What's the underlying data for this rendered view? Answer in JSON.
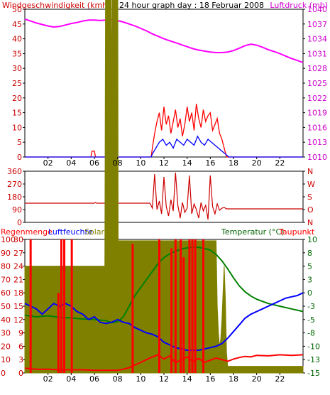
{
  "header": {
    "left_title": "Windgeschwindigkeit (kmh)",
    "center_title": "24 hour graph day : 18 Februar 2008",
    "right_title": "Luftdruck (mb)"
  },
  "panel3_labels": {
    "rain": "Regenmenge",
    "humidity": "Luftfeuchte",
    "solar": "Solar",
    "temperature": "Temperatur (°C)",
    "dewpoint": "Taupunkt"
  },
  "colors": {
    "wind_gust": "#ff0000",
    "wind_avg": "#0000ff",
    "pressure": "#ff00ff",
    "direction": "#cc0000",
    "solar": "#808000",
    "temperature": "#008000",
    "humidity": "#0000ff",
    "dewpoint": "#ff0000",
    "rain": "#ff0000",
    "rain_label": "#ff0000",
    "humidity_label": "#0000ff",
    "solar_label": "#808000",
    "temperature_label": "#006400",
    "dewpoint_label": "#ff0000",
    "left_axis_text": "#cc0000",
    "right_axis_text": "#cc00cc",
    "panel3_left_axis_text": "#cc0000",
    "panel3_right_axis_text": "#006400"
  },
  "chart_data": [
    {
      "type": "line",
      "panel": "wind-pressure",
      "x_tick_labels": [
        "02",
        "04",
        "06",
        "08",
        "10",
        "12",
        "14",
        "16",
        "18",
        "20",
        "22"
      ],
      "xlim": [
        0,
        24
      ],
      "left_axis": {
        "ticks": [
          "0",
          "5",
          "10",
          "15",
          "20",
          "25",
          "30",
          "35",
          "40",
          "45",
          "50"
        ],
        "ylim": [
          0,
          50
        ]
      },
      "right_axis": {
        "ticks": [
          "1010",
          "1013",
          "1016",
          "1019",
          "1022",
          "1025",
          "1028",
          "1031",
          "1034",
          "1037",
          "1040"
        ],
        "ylim": [
          1010,
          1040
        ]
      },
      "series": [
        {
          "key": "pressure",
          "x": [
            0,
            0.5,
            1,
            1.5,
            2,
            2.5,
            3,
            3.5,
            4,
            4.5,
            5,
            5.5,
            6,
            6.5,
            7,
            7.5,
            8,
            8.5,
            9,
            9.5,
            10,
            10.5,
            11,
            11.5,
            12,
            12.5,
            13,
            13.5,
            14,
            14.5,
            15,
            15.5,
            16,
            16.5,
            17,
            17.5,
            18,
            18.5,
            19,
            19.5,
            20,
            20.5,
            21,
            21.5,
            22,
            22.5,
            23,
            23.5,
            24
          ],
          "y": [
            1038,
            1037.6,
            1037.2,
            1036.9,
            1036.6,
            1036.4,
            1036.5,
            1036.8,
            1037.1,
            1037.3,
            1037.6,
            1037.8,
            1037.8,
            1037.7,
            1037.8,
            1037.9,
            1037.7,
            1037.4,
            1037.0,
            1036.6,
            1036.1,
            1035.6,
            1035.0,
            1034.5,
            1034.0,
            1033.6,
            1033.2,
            1032.8,
            1032.4,
            1032.0,
            1031.7,
            1031.5,
            1031.3,
            1031.2,
            1031.2,
            1031.3,
            1031.6,
            1032.1,
            1032.6,
            1032.9,
            1032.7,
            1032.3,
            1031.8,
            1031.4,
            1031.0,
            1030.5,
            1030.0,
            1029.6,
            1029.2
          ]
        },
        {
          "key": "wind_gust",
          "x": [
            0,
            5.7,
            5.8,
            6.0,
            6.1,
            10.9,
            11.0,
            11.2,
            11.4,
            11.6,
            11.8,
            12.0,
            12.2,
            12.4,
            12.6,
            12.8,
            13.0,
            13.2,
            13.4,
            13.6,
            13.8,
            14.0,
            14.2,
            14.4,
            14.6,
            14.8,
            15.0,
            15.2,
            15.4,
            15.6,
            15.8,
            16.0,
            16.2,
            16.4,
            16.6,
            16.8,
            17.0,
            17.2,
            17.4,
            24
          ],
          "y": [
            0,
            0,
            2,
            2,
            0,
            0,
            3,
            8,
            12,
            15,
            9,
            17,
            11,
            14,
            8,
            12,
            16,
            10,
            13,
            7,
            11,
            17,
            12,
            15,
            9,
            18,
            13,
            10,
            16,
            12,
            14,
            15,
            9,
            11,
            13,
            8,
            6,
            3,
            0,
            0
          ]
        },
        {
          "key": "wind_avg",
          "x": [
            0,
            10.9,
            11.0,
            11.3,
            11.6,
            11.9,
            12.2,
            12.5,
            12.8,
            13.1,
            13.4,
            13.7,
            14.0,
            14.3,
            14.6,
            14.9,
            15.2,
            15.5,
            15.8,
            16.1,
            16.4,
            16.7,
            17.0,
            17.3,
            17.6,
            24
          ],
          "y": [
            0,
            0,
            1,
            3,
            5,
            6,
            4,
            5,
            3,
            6,
            5,
            4,
            6,
            5,
            4,
            7,
            5,
            4,
            6,
            5,
            4,
            3,
            2,
            1,
            0,
            0
          ]
        }
      ]
    },
    {
      "type": "line",
      "panel": "wind-direction",
      "x_tick_labels": [],
      "xlim": [
        0,
        24
      ],
      "left_axis": {
        "ticks": [
          "0",
          "90",
          "180",
          "270",
          "360"
        ],
        "ylim": [
          0,
          360
        ]
      },
      "right_axis": {
        "ticks": [
          "N",
          "O",
          "S",
          "W",
          "N"
        ],
        "ylim": [
          0,
          360
        ]
      },
      "series": [
        {
          "key": "direction",
          "x": [
            0,
            6.0,
            6.1,
            6.2,
            10.8,
            11.0,
            11.2,
            11.4,
            11.6,
            11.8,
            12.0,
            12.2,
            12.4,
            12.6,
            12.8,
            13.0,
            13.2,
            13.4,
            13.6,
            13.8,
            14.0,
            14.2,
            14.4,
            14.6,
            14.8,
            15.0,
            15.2,
            15.4,
            15.6,
            15.8,
            16.0,
            16.2,
            16.4,
            16.6,
            16.8,
            17.0,
            17.2,
            17.4,
            24
          ],
          "y": [
            135,
            135,
            140,
            135,
            135,
            100,
            340,
            90,
            150,
            60,
            320,
            110,
            45,
            160,
            80,
            350,
            120,
            30,
            140,
            70,
            100,
            330,
            60,
            130,
            90,
            30,
            140,
            80,
            120,
            20,
            330,
            110,
            60,
            130,
            85,
            100,
            105,
            95,
            95
          ]
        }
      ]
    },
    {
      "type": "line",
      "panel": "rain-humidity-solar-temperature",
      "x_tick_labels": [
        "02",
        "04",
        "06",
        "08",
        "10",
        "12",
        "14",
        "16",
        "18",
        "20",
        "22"
      ],
      "xlim": [
        0,
        24
      ],
      "left_axis_1": {
        "ticks": [
          "0",
          "10",
          "20",
          "30",
          "40",
          "50",
          "60",
          "70",
          "80",
          "90",
          "100"
        ],
        "ylim": [
          0,
          100
        ]
      },
      "left_axis_2": {
        "ticks": [
          "0",
          "3",
          "6",
          "9",
          "12",
          "15",
          "18",
          "21",
          "24",
          "27",
          "30"
        ],
        "ylim": [
          0,
          30
        ]
      },
      "right_axis": {
        "ticks": [
          "-15",
          "-13",
          "-10",
          "-8",
          "-5",
          "-3",
          "0",
          "3",
          "5",
          "8",
          "10"
        ],
        "ylim": [
          -15,
          10
        ]
      },
      "series": [
        {
          "key": "solar",
          "x": [
            0,
            6.9,
            7.0,
            7.1,
            7.3,
            7.5,
            7.7,
            7.9,
            8.0,
            8.05,
            9.0,
            10.0,
            11.0,
            12.0,
            13.0,
            14.0,
            15.0,
            16.0,
            16.5,
            16.6,
            16.7,
            16.8,
            16.9,
            17.0,
            17.1,
            17.2,
            17.3,
            17.4,
            17.5,
            24
          ],
          "y": [
            0.8,
            0.8,
            4,
            3,
            5,
            2,
            6,
            3,
            4,
            0.99,
            0.99,
            0.99,
            0.99,
            0.99,
            0.99,
            0.99,
            0.99,
            0.99,
            0.99,
            0.5,
            0.3,
            0.2,
            0.25,
            0.4,
            0.6,
            0.8,
            0.55,
            0.15,
            0.05,
            0.05
          ]
        },
        {
          "key": "temperature",
          "x": [
            0,
            1,
            2,
            3,
            4,
            5,
            6,
            7,
            7.5,
            8,
            8.5,
            9,
            9.5,
            10,
            10.5,
            11,
            11.5,
            12,
            12.5,
            13,
            13.5,
            14,
            14.5,
            15,
            15.5,
            16,
            16.5,
            17,
            17.5,
            18,
            18.5,
            19,
            19.5,
            20,
            20.5,
            21,
            22,
            23,
            24
          ],
          "y": [
            -4.2,
            -4.5,
            -4.3,
            -4.6,
            -4.7,
            -4.9,
            -5.0,
            -5.2,
            -5.6,
            -5.4,
            -4.5,
            -2.5,
            -0.5,
            1.0,
            2.5,
            4.0,
            5.5,
            6.6,
            7.3,
            7.8,
            8.2,
            8.4,
            8.6,
            8.5,
            8.3,
            8.0,
            7.2,
            6.0,
            4.5,
            2.8,
            1.3,
            0.2,
            -0.6,
            -1.2,
            -1.6,
            -2.0,
            -2.5,
            -3.0,
            -3.5
          ]
        },
        {
          "key": "humidity",
          "x": [
            0,
            0.5,
            1,
            1.5,
            2,
            2.5,
            3,
            3.5,
            4,
            4.5,
            5,
            5.5,
            6,
            6.5,
            7,
            7.5,
            8,
            8.5,
            9,
            9.5,
            10,
            10.5,
            11,
            11.5,
            12,
            12.5,
            13,
            13.5,
            14,
            14.5,
            15,
            15.5,
            16,
            16.5,
            17,
            17.5,
            18,
            18.5,
            19,
            19.5,
            20,
            20.5,
            21,
            21.5,
            22,
            22.5,
            23,
            23.5,
            24
          ],
          "y": [
            52,
            50,
            48,
            44,
            48,
            52,
            50,
            52,
            50,
            46,
            44,
            40,
            42,
            38,
            37,
            38,
            40,
            38,
            37,
            34,
            32,
            30,
            29,
            27,
            23,
            21,
            19,
            18,
            17,
            17,
            17,
            18,
            19,
            20,
            22,
            26,
            31,
            36,
            41,
            44,
            46,
            48,
            50,
            52,
            54,
            56,
            57,
            58,
            60
          ]
        },
        {
          "key": "dewpoint",
          "x": [
            0,
            1,
            2,
            3,
            4,
            5,
            6,
            7,
            8,
            8.5,
            9,
            9.5,
            10,
            10.5,
            11,
            11.5,
            12,
            12.5,
            13,
            13.5,
            14,
            14.5,
            15,
            15.5,
            16,
            16.5,
            17,
            17.5,
            18,
            18.5,
            19,
            19.5,
            20,
            21,
            22,
            23,
            24
          ],
          "y": [
            -14.1,
            -14.3,
            -14.3,
            -14.4,
            -14.4,
            -14.4,
            -14.5,
            -14.5,
            -14.5,
            -14.3,
            -14.0,
            -13.5,
            -13.0,
            -12.5,
            -12.0,
            -11.6,
            -12.4,
            -11.8,
            -13.1,
            -12.5,
            -12.0,
            -12.8,
            -12.3,
            -13.0,
            -12.6,
            -12.2,
            -12.5,
            -12.8,
            -12.4,
            -12.1,
            -11.9,
            -12.0,
            -11.7,
            -11.8,
            -11.6,
            -11.7,
            -11.6
          ]
        },
        {
          "key": "rain",
          "type": "bar",
          "x": [
            0.5,
            2.9,
            3.15,
            3.4,
            4.05,
            9.3,
            11.6,
            12.65,
            13.0,
            13.45,
            13.7,
            14.2,
            14.45,
            14.7,
            15.4
          ],
          "y": [
            30,
            18,
            30,
            30,
            30,
            29,
            30,
            28,
            30,
            30,
            26,
            30,
            30,
            30,
            30
          ]
        }
      ]
    }
  ]
}
